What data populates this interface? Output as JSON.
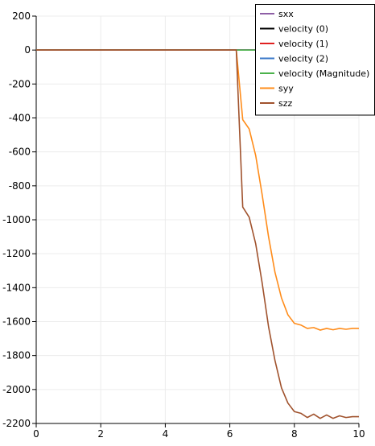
{
  "chart_data": {
    "type": "line",
    "xlim": [
      0,
      10
    ],
    "ylim": [
      -2200,
      200
    ],
    "x_ticks": [
      0,
      2,
      4,
      6,
      8,
      10
    ],
    "y_ticks": [
      200,
      0,
      -200,
      -400,
      -600,
      -800,
      -1000,
      -1200,
      -1400,
      -1600,
      -1800,
      -2000,
      -2200
    ],
    "grid": true,
    "legend_position": "top-right",
    "series": [
      {
        "name": "sxx",
        "color": "#8e5fa6",
        "x": [
          0,
          10
        ],
        "y": [
          0,
          0
        ]
      },
      {
        "name": "velocity (0)",
        "color": "#000000",
        "x": [
          0,
          10
        ],
        "y": [
          0,
          0
        ]
      },
      {
        "name": "velocity (1)",
        "color": "#e02020",
        "x": [
          0,
          10
        ],
        "y": [
          0,
          0
        ]
      },
      {
        "name": "velocity (2)",
        "color": "#3a78c9",
        "x": [
          0,
          10
        ],
        "y": [
          0,
          0
        ]
      },
      {
        "name": "velocity (Magnitude)",
        "color": "#4bb24b",
        "x": [
          0,
          10
        ],
        "y": [
          0,
          0
        ]
      },
      {
        "name": "syy",
        "color": "#ff8c1a",
        "x": [
          0,
          6.0,
          6.2,
          6.4,
          6.6,
          6.8,
          7.0,
          7.2,
          7.4,
          7.6,
          7.8,
          8.0,
          8.2,
          8.4,
          8.6,
          8.8,
          9.0,
          9.2,
          9.4,
          9.6,
          9.8,
          10.0
        ],
        "y": [
          0,
          0,
          0,
          -410,
          -465,
          -620,
          -850,
          -1100,
          -1310,
          -1460,
          -1560,
          -1610,
          -1620,
          -1640,
          -1635,
          -1650,
          -1640,
          -1648,
          -1640,
          -1645,
          -1640,
          -1640
        ]
      },
      {
        "name": "szz",
        "color": "#a0522d",
        "x": [
          0,
          6.0,
          6.2,
          6.4,
          6.6,
          6.8,
          7.0,
          7.2,
          7.4,
          7.6,
          7.8,
          8.0,
          8.2,
          8.4,
          8.6,
          8.8,
          9.0,
          9.2,
          9.4,
          9.6,
          9.8,
          10.0
        ],
        "y": [
          0,
          0,
          0,
          -925,
          -985,
          -1140,
          -1370,
          -1630,
          -1830,
          -1990,
          -2080,
          -2130,
          -2140,
          -2165,
          -2145,
          -2170,
          -2150,
          -2170,
          -2155,
          -2165,
          -2160,
          -2160
        ]
      }
    ]
  }
}
